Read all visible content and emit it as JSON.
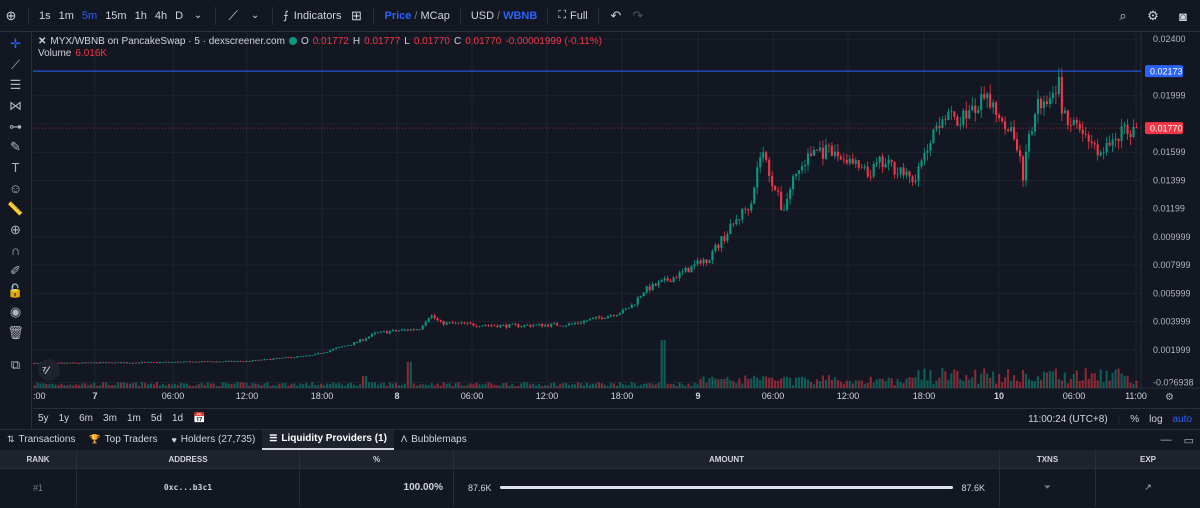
{
  "toolbar": {
    "intervals": [
      "1s",
      "1m",
      "5m",
      "15m",
      "1h",
      "4h",
      "D"
    ],
    "active_interval": "5m",
    "indicators_label": "Indicators",
    "price_label": "Price",
    "mcap_label": "MCap",
    "usd_label": "USD",
    "wbnb_label": "WBNB",
    "full_label": "Full"
  },
  "legend": {
    "symbol": "MYX/WBNB on PancakeSwap · 5 · dexscreener.com",
    "o_label": "O",
    "o_value": "0.01772",
    "h_label": "H",
    "h_value": "0.01777",
    "l_label": "L",
    "l_value": "0.01770",
    "c_label": "C",
    "c_value": "0.01770",
    "change": "-0.00001999 (-0.11%)",
    "volume_label": "Volume",
    "volume_value": "6.016K"
  },
  "chart_data": {
    "type": "candlestick",
    "y_ticks": [
      "0.02400",
      "0.01999",
      "0.01599",
      "0.01399",
      "0.01199",
      "0.009999",
      "0.007999",
      "0.005999",
      "0.003999",
      "0.001999",
      "-0.0?6938"
    ],
    "x_ticks": [
      "7",
      "06:00",
      "12:00",
      "18:00",
      "8",
      "06:00",
      "12:00",
      "18:00",
      "9",
      "06:00",
      "12:00",
      "18:00",
      "10",
      "06:00",
      "11:00"
    ],
    "x_tick_first_partial": ":00",
    "last_price": "0.01770",
    "horizontal_line": "0.02173",
    "ylim": [
      -0.0007,
      0.0245
    ],
    "price_path": [
      [
        0,
        0.00105
      ],
      [
        0.1,
        0.0011
      ],
      [
        0.2,
        0.0012
      ],
      [
        0.26,
        0.0016
      ],
      [
        0.3,
        0.0025
      ],
      [
        0.32,
        0.0032
      ],
      [
        0.36,
        0.0035
      ],
      [
        0.37,
        0.0045
      ],
      [
        0.38,
        0.0039
      ],
      [
        0.44,
        0.0037
      ],
      [
        0.5,
        0.0038
      ],
      [
        0.53,
        0.0043
      ],
      [
        0.55,
        0.0047
      ],
      [
        0.56,
        0.0052
      ],
      [
        0.57,
        0.0062
      ],
      [
        0.6,
        0.0072
      ],
      [
        0.63,
        0.0085
      ],
      [
        0.65,
        0.0105
      ],
      [
        0.67,
        0.0125
      ],
      [
        0.68,
        0.0162
      ],
      [
        0.69,
        0.014
      ],
      [
        0.7,
        0.0118
      ],
      [
        0.71,
        0.0142
      ],
      [
        0.73,
        0.0162
      ],
      [
        0.76,
        0.0155
      ],
      [
        0.78,
        0.0143
      ],
      [
        0.79,
        0.0152
      ],
      [
        0.81,
        0.0148
      ],
      [
        0.82,
        0.0138
      ],
      [
        0.83,
        0.0152
      ],
      [
        0.84,
        0.0175
      ],
      [
        0.85,
        0.0188
      ],
      [
        0.86,
        0.0182
      ],
      [
        0.88,
        0.019
      ],
      [
        0.89,
        0.0198
      ],
      [
        0.9,
        0.019
      ],
      [
        0.91,
        0.018
      ],
      [
        0.92,
        0.0165
      ],
      [
        0.925,
        0.0142
      ],
      [
        0.93,
        0.0168
      ],
      [
        0.94,
        0.0195
      ],
      [
        0.95,
        0.0202
      ],
      [
        0.96,
        0.0212
      ],
      [
        0.97,
        0.0206
      ],
      [
        0.98,
        0.0215
      ],
      [
        0.985,
        0.02
      ],
      [
        0.99,
        0.0175
      ],
      [
        0.995,
        0.0195
      ],
      [
        1.0,
        0.0187
      ]
    ],
    "price_path_tail": [
      [
        0.0,
        0.0187
      ],
      [
        0.2,
        0.0178
      ],
      [
        0.4,
        0.0168
      ],
      [
        0.55,
        0.0158
      ],
      [
        0.7,
        0.017
      ],
      [
        0.85,
        0.0175
      ],
      [
        1.0,
        0.0177
      ]
    ]
  },
  "rangebar": {
    "ranges": [
      "5y",
      "1y",
      "6m",
      "3m",
      "1m",
      "5d",
      "1d"
    ],
    "time": "11:00:24 (UTC+8)",
    "pct": "%",
    "log": "log",
    "auto": "auto"
  },
  "tabs": [
    {
      "label": "Transactions",
      "icon": "arrows-icon"
    },
    {
      "label": "Top Traders",
      "icon": "trophy-icon"
    },
    {
      "label": "Holders (27,735)",
      "icon": "heart-icon"
    },
    {
      "label": "Liquidity Providers (1)",
      "icon": "bars-icon",
      "active": true
    },
    {
      "label": "Bubblemaps",
      "icon": "bubble-icon"
    }
  ],
  "table": {
    "headers": [
      "RANK",
      "ADDRESS",
      "%",
      "AMOUNT",
      "TXNS",
      "EXP"
    ],
    "row": {
      "rank": "#1",
      "address": "0xc...b3c1",
      "percent": "100.00%",
      "amount_left": "87.6K",
      "amount_right": "87.6K",
      "fill": 1.0
    }
  },
  "colors": {
    "up": "#089981",
    "down": "#f23645",
    "accent": "#2962ff",
    "background": "#131722"
  }
}
